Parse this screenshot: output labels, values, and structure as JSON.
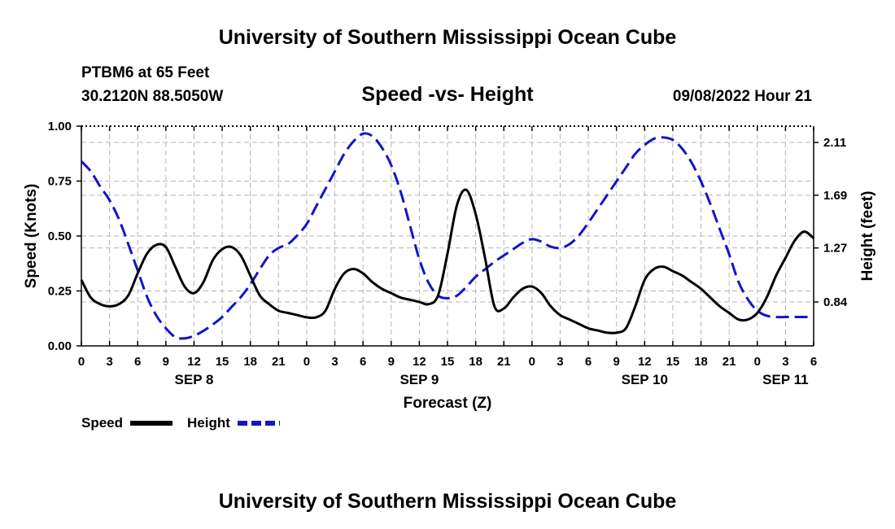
{
  "header": {
    "title": "University of Southern Mississippi Ocean Cube",
    "station": "PTBM6 at 65 Feet",
    "coords": "30.2120N  88.5050W",
    "subtitle": "Speed -vs- Height",
    "datetime": "09/08/2022 Hour 21"
  },
  "footer": {
    "title": "University of Southern Mississippi Ocean Cube"
  },
  "chart_data": {
    "type": "line",
    "title": "Speed -vs- Height",
    "xlabel": "Forecast (Z)",
    "ylabel": "Speed (Knots)",
    "y2label": "Height (feet)",
    "grid": true,
    "legend_position": "bottom-left",
    "colors": {
      "speed": "#000000",
      "height": "#1414c8",
      "grid": "#b4b4b4"
    },
    "x_range_hours": [
      0,
      78
    ],
    "x_unit": "hours since 09/08/2022 00Z",
    "x_ticks": [
      {
        "h": 0,
        "label": "0"
      },
      {
        "h": 3,
        "label": "3"
      },
      {
        "h": 6,
        "label": "6"
      },
      {
        "h": 9,
        "label": "9"
      },
      {
        "h": 12,
        "label": "12"
      },
      {
        "h": 15,
        "label": "15"
      },
      {
        "h": 18,
        "label": "18"
      },
      {
        "h": 21,
        "label": "21"
      },
      {
        "h": 24,
        "label": "0"
      },
      {
        "h": 27,
        "label": "3"
      },
      {
        "h": 30,
        "label": "6"
      },
      {
        "h": 33,
        "label": "9"
      },
      {
        "h": 36,
        "label": "12"
      },
      {
        "h": 39,
        "label": "15"
      },
      {
        "h": 42,
        "label": "18"
      },
      {
        "h": 45,
        "label": "21"
      },
      {
        "h": 48,
        "label": "0"
      },
      {
        "h": 51,
        "label": "3"
      },
      {
        "h": 54,
        "label": "6"
      },
      {
        "h": 57,
        "label": "9"
      },
      {
        "h": 60,
        "label": "12"
      },
      {
        "h": 63,
        "label": "15"
      },
      {
        "h": 66,
        "label": "18"
      },
      {
        "h": 69,
        "label": "21"
      },
      {
        "h": 72,
        "label": "0"
      },
      {
        "h": 75,
        "label": "3"
      },
      {
        "h": 78,
        "label": "6"
      }
    ],
    "day_labels": [
      {
        "h": 12,
        "label": "SEP 8"
      },
      {
        "h": 36,
        "label": "SEP 9"
      },
      {
        "h": 60,
        "label": "SEP 10"
      },
      {
        "h": 75,
        "label": "SEP 11"
      }
    ],
    "y_left": {
      "min": 0.0,
      "max": 1.0,
      "ticks": [
        "0.00",
        "0.25",
        "0.50",
        "0.75",
        "1.00"
      ]
    },
    "y_right": {
      "min": 0.49,
      "max": 2.24,
      "ticks": [
        "0.84",
        "1.27",
        "1.69",
        "2.11"
      ]
    },
    "series": [
      {
        "name": "Speed",
        "axis": "left",
        "x": [
          0,
          1,
          2,
          3,
          4,
          5,
          6,
          7,
          8,
          9,
          10,
          11,
          12,
          13,
          14,
          15,
          16,
          17,
          18,
          19,
          20,
          21,
          22,
          23,
          24,
          25,
          26,
          27,
          28,
          29,
          30,
          31,
          32,
          33,
          34,
          35,
          36,
          37,
          38,
          39,
          40,
          41,
          42,
          43,
          44,
          45,
          46,
          47,
          48,
          49,
          50,
          51,
          52,
          53,
          54,
          55,
          56,
          57,
          58,
          59,
          60,
          61,
          62,
          63,
          64,
          65,
          66,
          67,
          68,
          69,
          70,
          71,
          72,
          73,
          74,
          75,
          76,
          77,
          78
        ],
        "values": [
          0.3,
          0.22,
          0.19,
          0.18,
          0.19,
          0.23,
          0.33,
          0.42,
          0.46,
          0.45,
          0.36,
          0.27,
          0.24,
          0.29,
          0.39,
          0.44,
          0.45,
          0.41,
          0.32,
          0.23,
          0.19,
          0.16,
          0.15,
          0.14,
          0.13,
          0.13,
          0.16,
          0.26,
          0.33,
          0.35,
          0.33,
          0.29,
          0.26,
          0.24,
          0.22,
          0.21,
          0.2,
          0.19,
          0.23,
          0.42,
          0.64,
          0.71,
          0.6,
          0.4,
          0.18,
          0.17,
          0.22,
          0.26,
          0.27,
          0.24,
          0.18,
          0.14,
          0.12,
          0.1,
          0.08,
          0.07,
          0.06,
          0.06,
          0.08,
          0.18,
          0.3,
          0.35,
          0.36,
          0.34,
          0.32,
          0.29,
          0.26,
          0.22,
          0.18,
          0.15,
          0.12,
          0.12,
          0.15,
          0.22,
          0.32,
          0.4,
          0.48,
          0.52,
          0.49
        ]
      },
      {
        "name": "Height",
        "axis": "right",
        "x": [
          0,
          1,
          2,
          3,
          4,
          5,
          6,
          7,
          8,
          9,
          10,
          11,
          12,
          13,
          14,
          15,
          16,
          17,
          18,
          19,
          20,
          21,
          22,
          23,
          24,
          25,
          26,
          27,
          28,
          29,
          30,
          31,
          32,
          33,
          34,
          35,
          36,
          37,
          38,
          39,
          40,
          41,
          42,
          43,
          44,
          45,
          46,
          47,
          48,
          49,
          50,
          51,
          52,
          53,
          54,
          55,
          56,
          57,
          58,
          59,
          60,
          61,
          62,
          63,
          64,
          65,
          66,
          67,
          68,
          69,
          70,
          71,
          72,
          73,
          74,
          75,
          76,
          77,
          78
        ],
        "values": [
          1.96,
          1.88,
          1.76,
          1.65,
          1.5,
          1.3,
          1.09,
          0.88,
          0.73,
          0.63,
          0.56,
          0.55,
          0.57,
          0.61,
          0.66,
          0.72,
          0.8,
          0.88,
          0.98,
          1.1,
          1.21,
          1.27,
          1.3,
          1.37,
          1.46,
          1.6,
          1.74,
          1.88,
          2.02,
          2.12,
          2.18,
          2.16,
          2.07,
          1.93,
          1.72,
          1.45,
          1.18,
          0.99,
          0.89,
          0.87,
          0.89,
          0.96,
          1.04,
          1.1,
          1.16,
          1.21,
          1.26,
          1.31,
          1.34,
          1.32,
          1.28,
          1.27,
          1.3,
          1.37,
          1.47,
          1.58,
          1.69,
          1.8,
          1.91,
          2.02,
          2.09,
          2.14,
          2.15,
          2.13,
          2.06,
          1.95,
          1.8,
          1.62,
          1.42,
          1.22,
          1.0,
          0.86,
          0.77,
          0.73,
          0.72,
          0.72,
          0.72,
          0.72,
          0.72
        ]
      }
    ]
  }
}
